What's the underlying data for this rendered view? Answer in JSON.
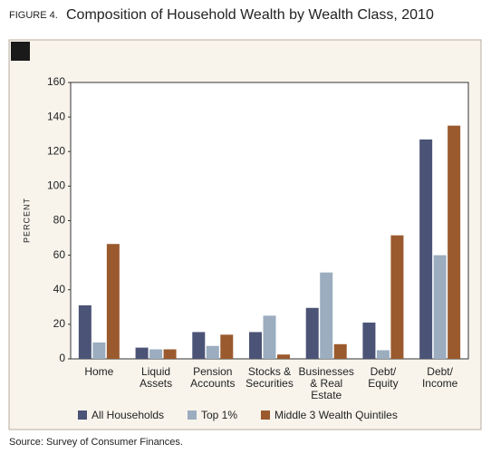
{
  "chart_data": {
    "type": "bar",
    "figure_label": "FIGURE 4.",
    "title": "Composition of Household Wealth by Wealth Class, 2010",
    "y_label": "PERCENT",
    "source": "Source: Survey of Consumer Finances.",
    "categories": [
      [
        "Home"
      ],
      [
        "Liquid",
        "Assets"
      ],
      [
        "Pension",
        "Accounts"
      ],
      [
        "Stocks &",
        "Securities"
      ],
      [
        "Businesses",
        "& Real",
        "Estate"
      ],
      [
        "Debt/",
        "Equity"
      ],
      [
        "Debt/",
        "Income"
      ]
    ],
    "series": [
      {
        "name": "All Households",
        "color": "#4b5376",
        "values": [
          31,
          6.5,
          15.5,
          15.5,
          29.5,
          21,
          127
        ]
      },
      {
        "name": "Top 1%",
        "color": "#9badbf",
        "values": [
          9.5,
          5.5,
          7.5,
          25,
          50,
          5,
          60
        ]
      },
      {
        "name": "Middle 3 Wealth Quintiles",
        "color": "#9a5a2e",
        "values": [
          66.5,
          5.5,
          14,
          2.5,
          8.5,
          71.5,
          135
        ]
      }
    ],
    "ylim": [
      0,
      160
    ],
    "yticks": [
      0,
      20,
      40,
      60,
      80,
      100,
      120,
      140,
      160
    ]
  }
}
